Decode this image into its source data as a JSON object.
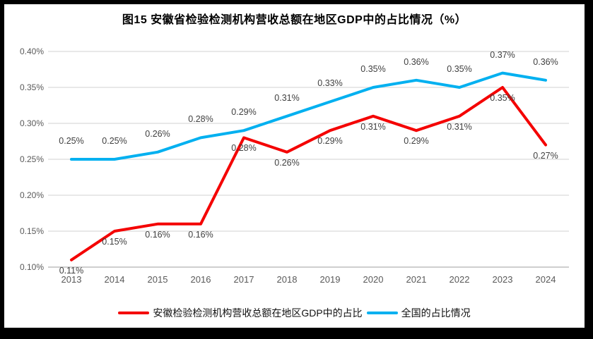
{
  "chart_data": {
    "type": "line",
    "title": "图15  安徽省检验检测机构营收总额在地区GDP中的占比情况（%）",
    "categories": [
      "2013",
      "2014",
      "2015",
      "2016",
      "2017",
      "2018",
      "2019",
      "2020",
      "2021",
      "2022",
      "2023",
      "2024"
    ],
    "series": [
      {
        "name": "安徽检验检测机构营收总额在地区GDP中的占比",
        "color": "#f40000",
        "values": [
          0.11,
          0.15,
          0.16,
          0.16,
          0.28,
          0.26,
          0.29,
          0.31,
          0.29,
          0.31,
          0.35,
          0.27
        ],
        "labels": [
          "0.11%",
          "0.15%",
          "0.16%",
          "0.16%",
          "0.28%",
          "0.26%",
          "0.29%",
          "0.31%",
          "0.29%",
          "0.31%",
          "0.35%",
          "0.27%"
        ],
        "label_position": "below"
      },
      {
        "name": "全国的占比情况",
        "color": "#00b0f0",
        "values": [
          0.25,
          0.25,
          0.26,
          0.28,
          0.29,
          0.31,
          0.33,
          0.35,
          0.36,
          0.35,
          0.37,
          0.36
        ],
        "labels": [
          "0.25%",
          "0.25%",
          "0.26%",
          "0.28%",
          "0.29%",
          "0.31%",
          "0.33%",
          "0.35%",
          "0.36%",
          "0.35%",
          "0.37%",
          "0.36%"
        ],
        "label_position": "above"
      }
    ],
    "y_axis": {
      "ticks": [
        "0.40%",
        "0.35%",
        "0.30%",
        "0.25%",
        "0.20%",
        "0.15%",
        "0.10%"
      ],
      "tick_values": [
        0.4,
        0.35,
        0.3,
        0.25,
        0.2,
        0.15,
        0.1
      ],
      "min": 0.1,
      "max": 0.4
    },
    "grid": true,
    "legend_position": "bottom"
  },
  "colors": {
    "frame": "#000000",
    "background": "#ffffff",
    "gridline": "#d9d9d9",
    "axis_line": "#bfbfbf",
    "tick_text": "#595959",
    "data_label_text": "#404040",
    "title_text": "#000000",
    "legend_text": "#111111"
  }
}
